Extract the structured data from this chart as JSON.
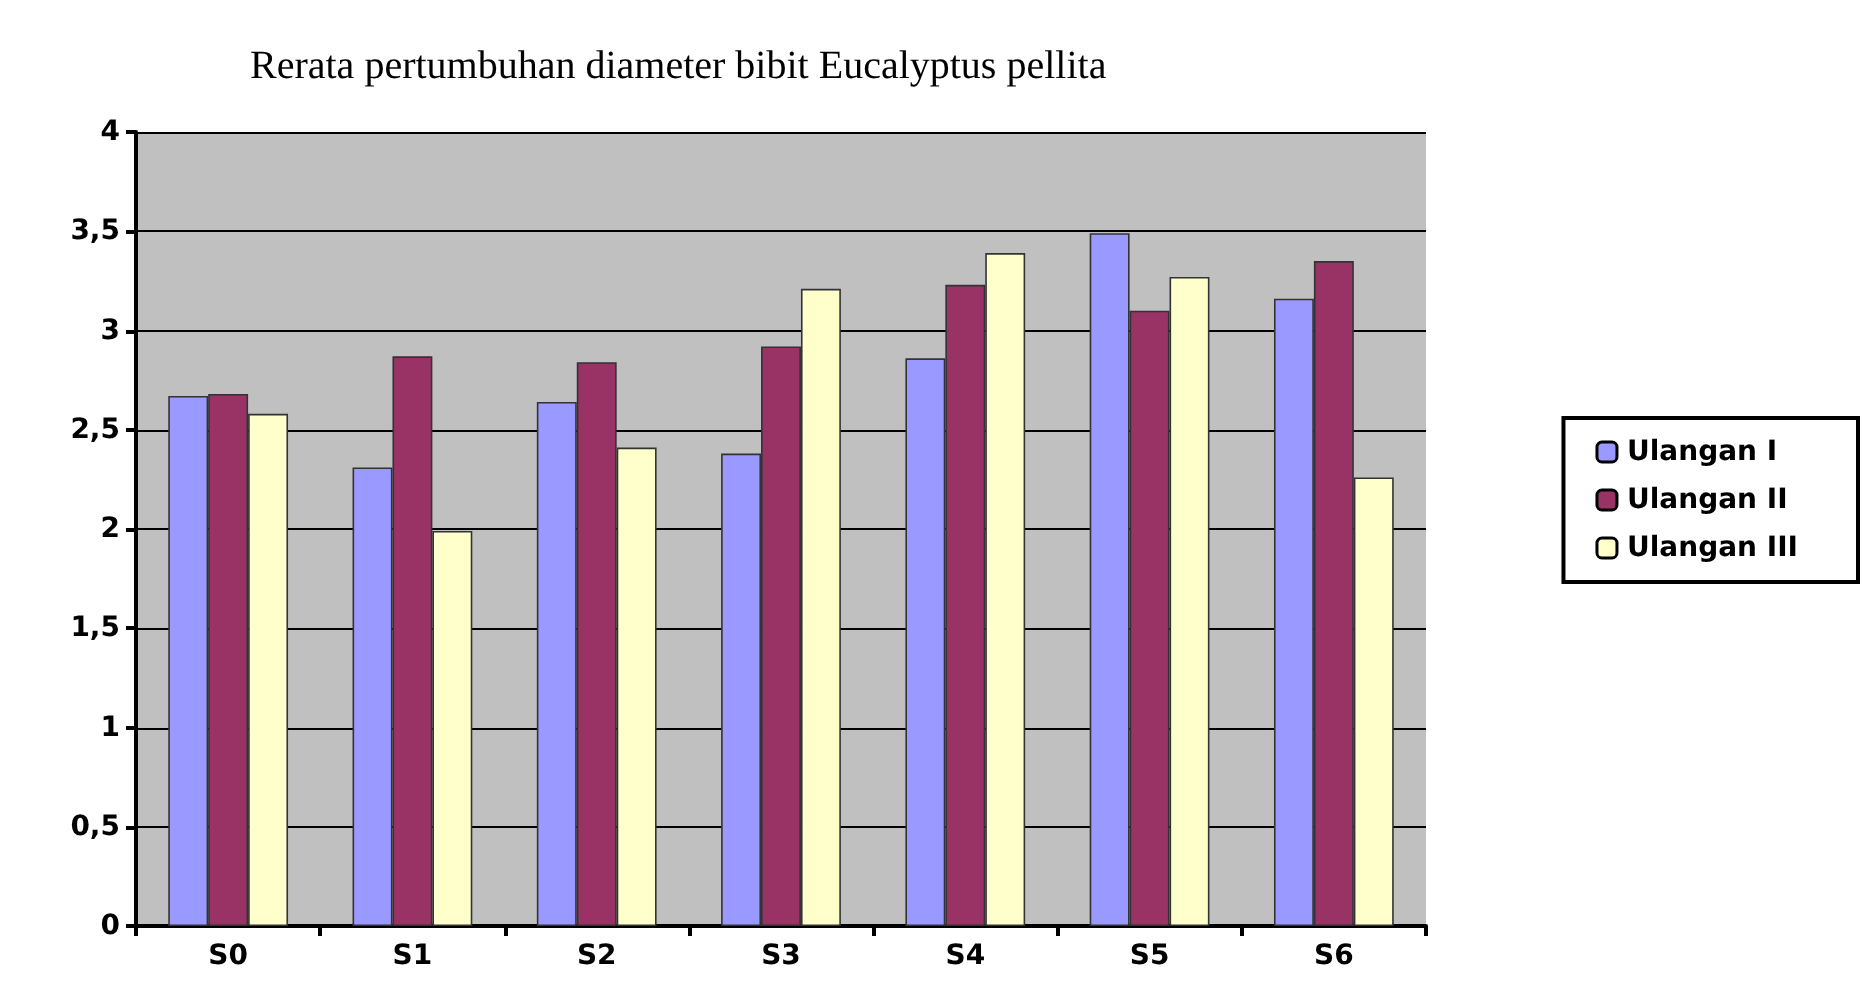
{
  "chart_data": {
    "type": "bar",
    "title": "Rerata pertumbuhan diameter bibit Eucalyptus pellita",
    "categories": [
      "S0",
      "S1",
      "S2",
      "S3",
      "S4",
      "S5",
      "S6"
    ],
    "series": [
      {
        "name": "Ulangan I",
        "color": "#9999ff",
        "values": [
          2.67,
          2.31,
          2.64,
          2.38,
          2.86,
          3.49,
          3.16
        ]
      },
      {
        "name": "Ulangan II",
        "color": "#993366",
        "values": [
          2.68,
          2.87,
          2.84,
          2.92,
          3.23,
          3.1,
          3.35
        ]
      },
      {
        "name": "Ulangan III",
        "color": "#ffffcc",
        "values": [
          2.58,
          1.99,
          2.41,
          3.21,
          3.39,
          3.27,
          2.26
        ]
      }
    ],
    "ylim": [
      0,
      4
    ],
    "yticks": [
      {
        "value": 0,
        "label": "0"
      },
      {
        "value": 0.5,
        "label": "0,5"
      },
      {
        "value": 1,
        "label": "1"
      },
      {
        "value": 1.5,
        "label": "1,5"
      },
      {
        "value": 2,
        "label": "2"
      },
      {
        "value": 2.5,
        "label": "2,5"
      },
      {
        "value": 3,
        "label": "3"
      },
      {
        "value": 3.5,
        "label": "3,5"
      },
      {
        "value": 4,
        "label": "4"
      }
    ],
    "grid": "y",
    "legend": "right"
  }
}
